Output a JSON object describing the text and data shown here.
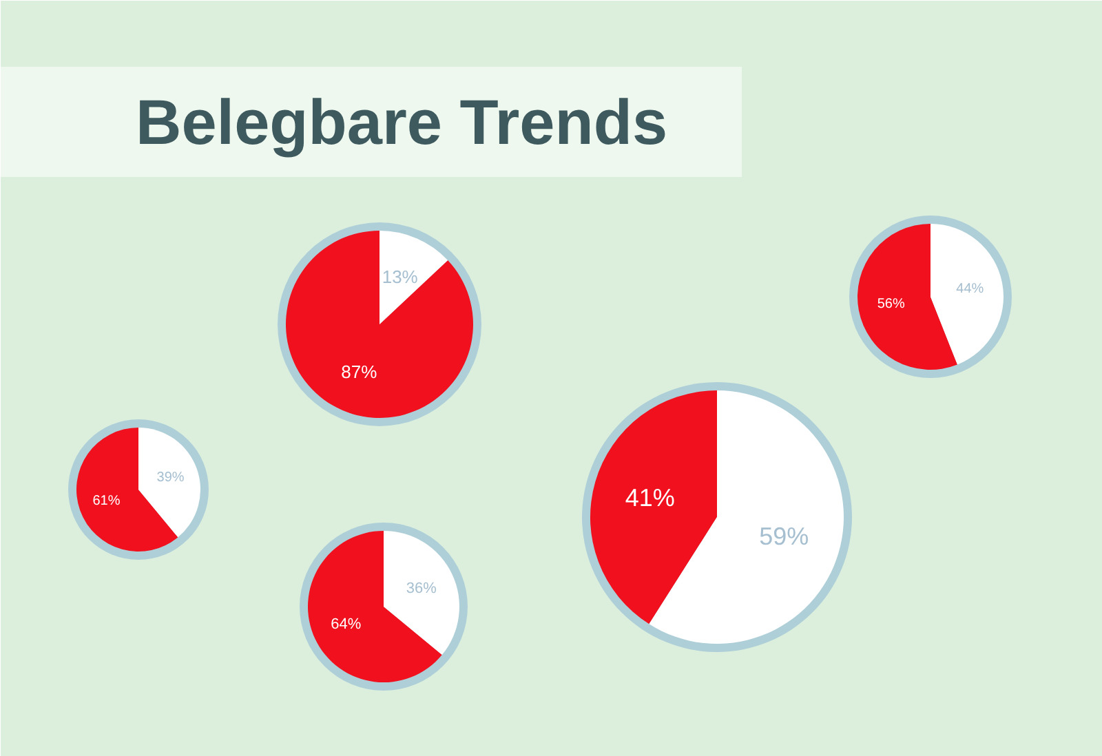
{
  "chart_data": [
    {
      "type": "pie",
      "title": "Belegbare Trends",
      "categories": [
        null,
        null
      ],
      "values": [
        87,
        13
      ],
      "colors": [
        "#f0101e",
        "#ffffff"
      ],
      "value_labels": [
        "87%",
        "13%"
      ]
    },
    {
      "type": "pie",
      "categories": [
        null,
        null
      ],
      "values": [
        56,
        44
      ],
      "colors": [
        "#f0101e",
        "#ffffff"
      ],
      "value_labels": [
        "56%",
        "44%"
      ]
    },
    {
      "type": "pie",
      "categories": [
        null,
        null
      ],
      "values": [
        61,
        39
      ],
      "colors": [
        "#f0101e",
        "#ffffff"
      ],
      "value_labels": [
        "61%",
        "39%"
      ]
    },
    {
      "type": "pie",
      "categories": [
        null,
        null
      ],
      "values": [
        41,
        59
      ],
      "colors": [
        "#f0101e",
        "#ffffff"
      ],
      "value_labels": [
        "41%",
        "59%"
      ]
    },
    {
      "type": "pie",
      "categories": [
        null,
        null
      ],
      "values": [
        64,
        36
      ],
      "colors": [
        "#f0101e",
        "#ffffff"
      ],
      "value_labels": [
        "64%",
        "36%"
      ]
    }
  ]
}
